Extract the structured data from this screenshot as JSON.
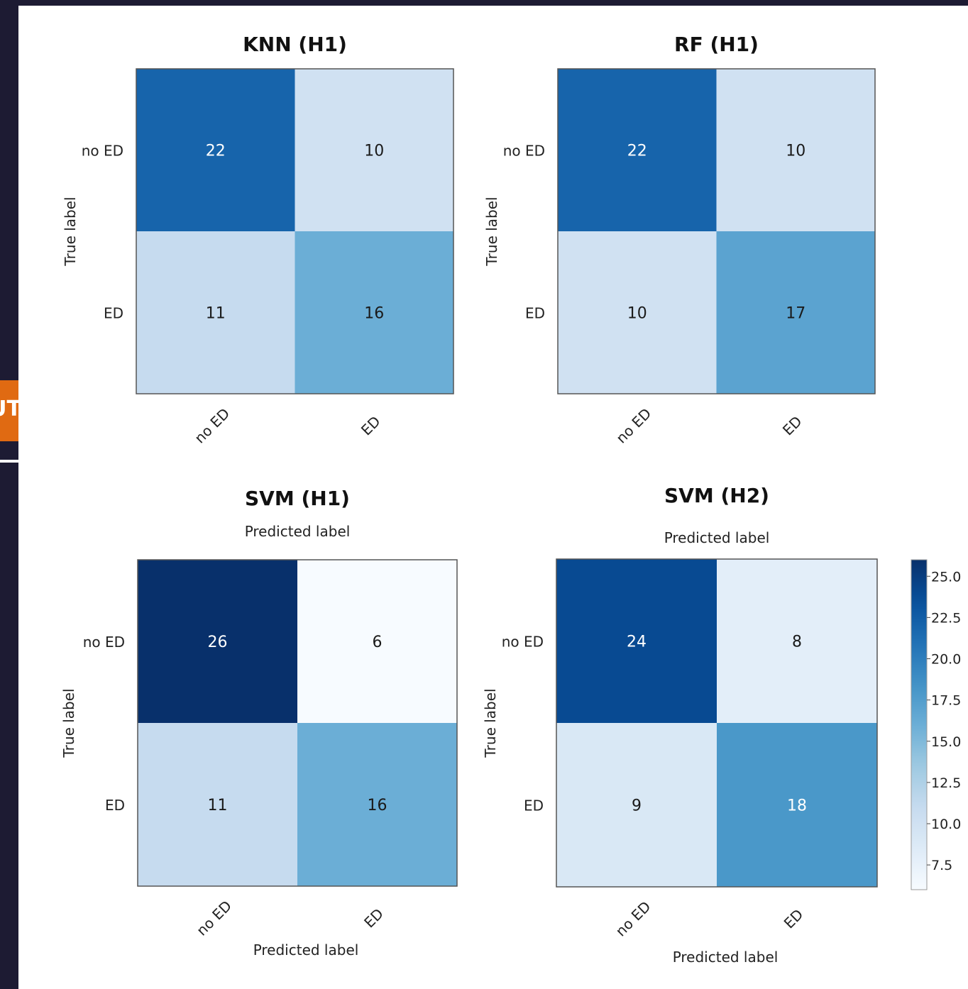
{
  "window": {
    "side_tab_text": "UT",
    "frame_color": "#1d1b33",
    "tab_color": "#e06a12"
  },
  "chart_data": [
    {
      "type": "heatmap",
      "title": "KNN (H1)",
      "top_label": "",
      "xlabel": "",
      "ylabel": "True label",
      "x_categories": [
        "no ED",
        "ED"
      ],
      "y_categories": [
        "no ED",
        "ED"
      ],
      "values": [
        [
          22,
          10
        ],
        [
          11,
          16
        ]
      ]
    },
    {
      "type": "heatmap",
      "title": "RF (H1)",
      "top_label": "",
      "xlabel": "",
      "ylabel": "True label",
      "x_categories": [
        "no ED",
        "ED"
      ],
      "y_categories": [
        "no ED",
        "ED"
      ],
      "values": [
        [
          22,
          10
        ],
        [
          10,
          17
        ]
      ]
    },
    {
      "type": "heatmap",
      "title": "SVM (H1)",
      "top_label": "Predicted label",
      "xlabel": "Predicted label",
      "ylabel": "True label",
      "x_categories": [
        "no ED",
        "ED"
      ],
      "y_categories": [
        "no ED",
        "ED"
      ],
      "values": [
        [
          26,
          6
        ],
        [
          11,
          16
        ]
      ]
    },
    {
      "type": "heatmap",
      "title": "SVM (H2)",
      "top_label": "Predicted label",
      "xlabel": "Predicted label",
      "ylabel": "True label",
      "x_categories": [
        "no ED",
        "ED"
      ],
      "y_categories": [
        "no ED",
        "ED"
      ],
      "values": [
        [
          24,
          8
        ],
        [
          9,
          18
        ]
      ]
    }
  ],
  "colorbar": {
    "colormap": "Blues",
    "min": 6,
    "max": 26,
    "ticks": [
      "25.0",
      "22.5",
      "20.0",
      "17.5",
      "15.0",
      "12.5",
      "10.0",
      "7.5"
    ],
    "tick_values": [
      25.0,
      22.5,
      20.0,
      17.5,
      15.0,
      12.5,
      10.0,
      7.5
    ]
  }
}
